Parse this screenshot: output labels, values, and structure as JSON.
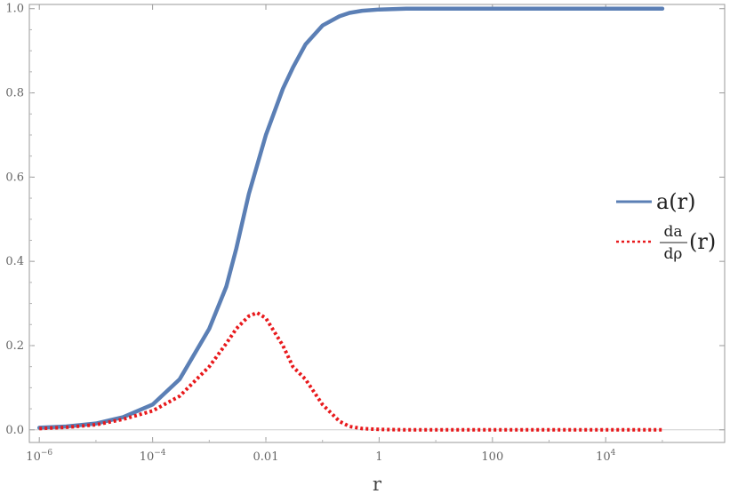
{
  "chart_data": {
    "type": "line",
    "title": "",
    "xlabel": "r",
    "ylabel": "",
    "x_scale": "log10",
    "xlim": [
      1e-06,
      100000
    ],
    "ylim": [
      0.0,
      1.0
    ],
    "grid": false,
    "legend_position": "right",
    "x_ticks": [
      {
        "value": 1e-06,
        "base": "10",
        "exp": "−6"
      },
      {
        "value": 0.0001,
        "base": "10",
        "exp": "−4"
      },
      {
        "value": 0.01,
        "base": "0.01",
        "exp": ""
      },
      {
        "value": 1,
        "base": "1",
        "exp": ""
      },
      {
        "value": 100,
        "base": "100",
        "exp": ""
      },
      {
        "value": 10000,
        "base": "10",
        "exp": "4"
      }
    ],
    "y_ticks": [
      {
        "value": 0.0,
        "label": "0.0"
      },
      {
        "value": 0.2,
        "label": "0.2"
      },
      {
        "value": 0.4,
        "label": "0.4"
      },
      {
        "value": 0.6,
        "label": "0.6"
      },
      {
        "value": 0.8,
        "label": "0.8"
      },
      {
        "value": 1.0,
        "label": "1.0"
      }
    ],
    "series": [
      {
        "name": "a(r)",
        "legend": {
          "main": "a(r)"
        },
        "color": "#5b7fb5",
        "style": "solid",
        "x": [
          1e-06,
          3e-06,
          1e-05,
          3e-05,
          0.0001,
          0.0003,
          0.001,
          0.002,
          0.003,
          0.005,
          0.01,
          0.02,
          0.03,
          0.05,
          0.1,
          0.2,
          0.3,
          0.5,
          1,
          3,
          10,
          100,
          1000,
          10000,
          100000
        ],
        "y": [
          0.005,
          0.008,
          0.015,
          0.03,
          0.06,
          0.12,
          0.24,
          0.34,
          0.43,
          0.56,
          0.7,
          0.81,
          0.86,
          0.915,
          0.96,
          0.982,
          0.99,
          0.995,
          0.998,
          1.0,
          1.0,
          1.0,
          1.0,
          1.0,
          1.0
        ]
      },
      {
        "name": "da/dρ(r)",
        "legend": {
          "num": "da",
          "den": "dρ",
          "suffix": "(r)"
        },
        "color": "#e8191c",
        "style": "dotted",
        "x": [
          1e-06,
          3e-06,
          1e-05,
          3e-05,
          0.0001,
          0.0003,
          0.001,
          0.002,
          0.003,
          0.005,
          0.007,
          0.01,
          0.02,
          0.03,
          0.05,
          0.1,
          0.2,
          0.3,
          0.5,
          1,
          3,
          10,
          100,
          1000,
          10000,
          100000
        ],
        "y": [
          0.003,
          0.006,
          0.012,
          0.025,
          0.045,
          0.08,
          0.15,
          0.205,
          0.24,
          0.27,
          0.278,
          0.265,
          0.2,
          0.15,
          0.12,
          0.06,
          0.02,
          0.008,
          0.003,
          0.001,
          0.0,
          0.0,
          0.0,
          0.0,
          0.0,
          0.0
        ]
      }
    ]
  }
}
